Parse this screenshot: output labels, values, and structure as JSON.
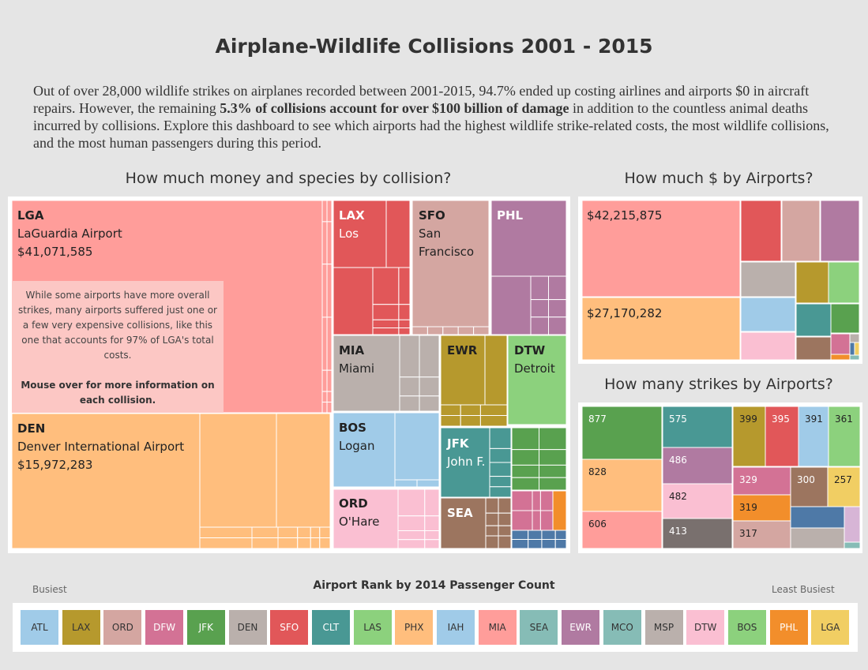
{
  "title": "Airplane-Wildlife Collisions 2001 - 2015",
  "intro": {
    "part1": "Out of over 28,000 wildlife strikes on airplanes recorded between 2001-2015, 94.7% ended up costing airlines and airports $0 in aircraft repairs. However, the remaining ",
    "bold": "5.3% of collisions account for over $100 billion of damage",
    "part2": " in addition to the countless animal deaths incurred by collisions. Explore this dashboard to see which airports had the highest wildlife strike-related costs, the most wildlife collisions, and the most human passengers during this period."
  },
  "section_titles": {
    "collision": "How much money and species by collision?",
    "cost": "How much $ by Airports?",
    "strikes": "How many strikes by Airports?"
  },
  "callout": {
    "text": "While some airports have more overall strikes, many airports suffered just one or a few very expensive collisions, like this one that accounts for 97% of LGA's total costs.",
    "bold": "Mouse over for more information on each collision."
  },
  "legend": {
    "title": "Airport Rank by 2014 Passenger Count",
    "busiest": "Busiest",
    "least": "Least Busiest",
    "items": [
      {
        "code": "ATL",
        "color": "#a0cbe8"
      },
      {
        "code": "LAX",
        "color": "#b6992d"
      },
      {
        "code": "ORD",
        "color": "#d4a6a1"
      },
      {
        "code": "DFW",
        "color": "#d37295"
      },
      {
        "code": "JFK",
        "color": "#59a14f"
      },
      {
        "code": "DEN",
        "color": "#bab0ac"
      },
      {
        "code": "SFO",
        "color": "#e15759"
      },
      {
        "code": "CLT",
        "color": "#499894"
      },
      {
        "code": "LAS",
        "color": "#8cd17d"
      },
      {
        "code": "PHX",
        "color": "#ffbe7d"
      },
      {
        "code": "IAH",
        "color": "#a0cbe8"
      },
      {
        "code": "MIA",
        "color": "#ff9d9a"
      },
      {
        "code": "SEA",
        "color": "#86bcb6"
      },
      {
        "code": "EWR",
        "color": "#b07aa1"
      },
      {
        "code": "MCO",
        "color": "#86bcb6"
      },
      {
        "code": "MSP",
        "color": "#bab0ac"
      },
      {
        "code": "DTW",
        "color": "#fabfd2"
      },
      {
        "code": "BOS",
        "color": "#8cd17d"
      },
      {
        "code": "PHL",
        "color": "#f28e2b"
      },
      {
        "code": "LGA",
        "color": "#f1ce63"
      }
    ]
  },
  "chart_data": [
    {
      "type": "treemap",
      "title": "How much money and species by collision?",
      "series": [
        {
          "code": "LGA",
          "name": "LaGuardia Airport",
          "value": "$41,071,585",
          "color": "#ff9d9a"
        },
        {
          "code": "DEN",
          "name": "Denver International Airport",
          "value": "$15,972,283",
          "color": "#ffbe7d"
        },
        {
          "code": "LAX",
          "name": "Los",
          "color": "#e15759"
        },
        {
          "code": "SFO",
          "name": "San Francisco",
          "color": "#d4a6a1"
        },
        {
          "code": "PHL",
          "name": "",
          "color": "#b07aa1"
        },
        {
          "code": "MIA",
          "name": "Miami",
          "color": "#bab0ac"
        },
        {
          "code": "EWR",
          "name": "",
          "color": "#b6992d"
        },
        {
          "code": "DTW",
          "name": "Detroit",
          "color": "#8cd17d"
        },
        {
          "code": "BOS",
          "name": "Logan",
          "color": "#a0cbe8"
        },
        {
          "code": "JFK",
          "name": "John F.",
          "color": "#499894"
        },
        {
          "code": "ORD",
          "name": "O'Hare",
          "color": "#fabfd2"
        },
        {
          "code": "SEA",
          "name": "",
          "color": "#9c755f"
        }
      ]
    },
    {
      "type": "treemap",
      "title": "How much $ by Airports?",
      "labels": [
        "$42,215,875",
        "$27,170,282"
      ]
    },
    {
      "type": "treemap",
      "title": "How many strikes by Airports?",
      "values": [
        877,
        828,
        606,
        575,
        486,
        482,
        413,
        399,
        395,
        391,
        361,
        329,
        300,
        257,
        319,
        317
      ]
    }
  ]
}
